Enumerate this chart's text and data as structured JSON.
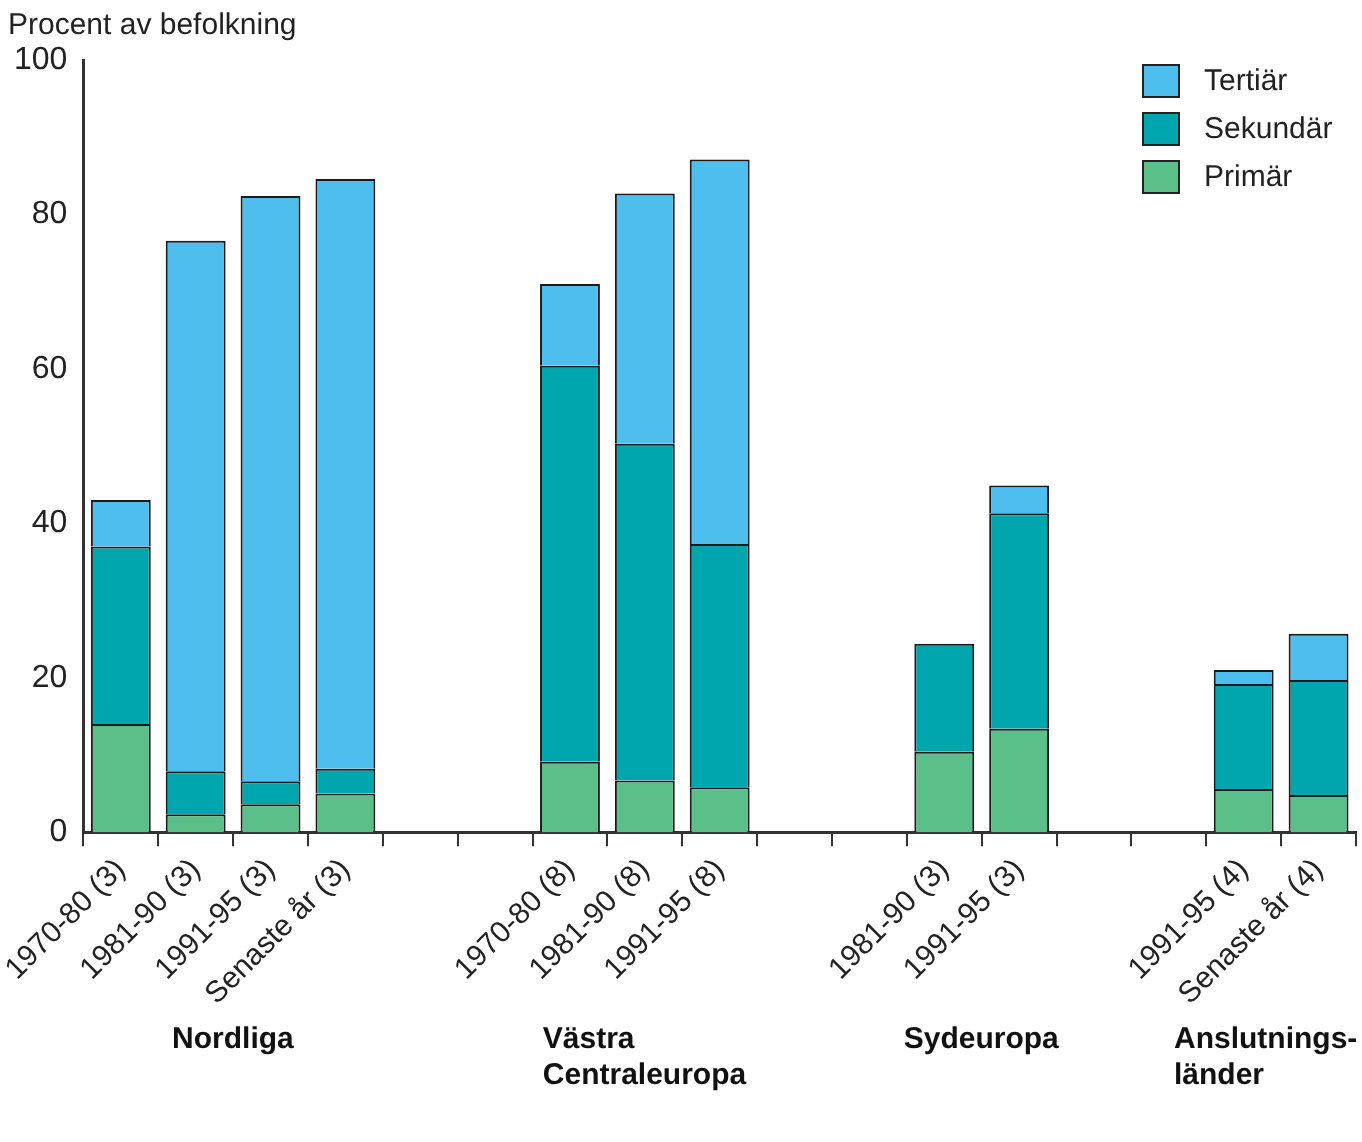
{
  "chart_data": {
    "type": "bar",
    "ylabel": "Procent av befolkning",
    "categories": [
      "1970-80 (3)",
      "1981-90 (3)",
      "1991-95 (3)",
      "Senaste år (3)",
      null,
      null,
      "1970-80 (8)",
      "1981-90 (8)",
      "1991-95 (8)",
      null,
      null,
      "1981-90 (3)",
      "1991-95 (3)",
      null,
      null,
      "1991-95 (4)",
      "Senaste år (4)"
    ],
    "series": [
      {
        "name": "Primär",
        "color": "#5bbf8a",
        "values": [
          14,
          2.3,
          3.6,
          5,
          null,
          null,
          9.1,
          6.7,
          5.8,
          null,
          null,
          10.4,
          13.4,
          null,
          null,
          5.6,
          4.8
        ]
      },
      {
        "name": "Sekundär",
        "color": "#00a6ad",
        "values": [
          23,
          5.6,
          3,
          3.2,
          null,
          null,
          51.3,
          43.6,
          31.5,
          null,
          null,
          14,
          27.9,
          null,
          null,
          13.6,
          14.9
        ]
      },
      {
        "name": "Tertiär",
        "color": "#4dbeed",
        "values": [
          6,
          68.7,
          75.8,
          76.4,
          null,
          null,
          10.6,
          32.4,
          49.8,
          null,
          null,
          null,
          3.6,
          null,
          null,
          1.8,
          6
        ]
      }
    ],
    "stacked": true,
    "ylim": [
      0,
      100
    ],
    "yticks": [
      0,
      20,
      40,
      60,
      80,
      100
    ],
    "grid": false,
    "legend": "top right",
    "annotations": [
      "Nordliga",
      "Västra\nCentraleuropa",
      "Sydeuropa",
      "Anslutnings-\nländer"
    ]
  }
}
